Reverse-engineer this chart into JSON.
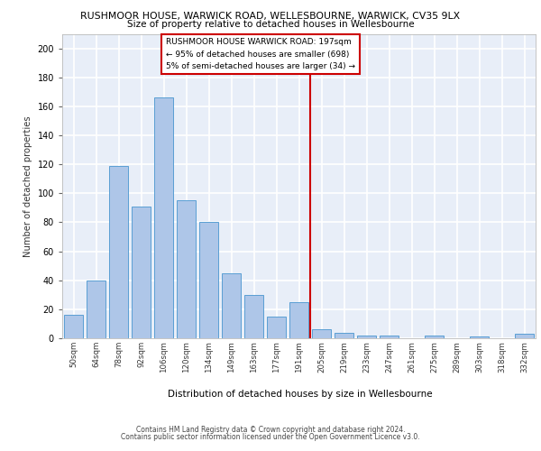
{
  "title": "RUSHMOOR HOUSE, WARWICK ROAD, WELLESBOURNE, WARWICK, CV35 9LX",
  "subtitle": "Size of property relative to detached houses in Wellesbourne",
  "xlabel": "Distribution of detached houses by size in Wellesbourne",
  "ylabel": "Number of detached properties",
  "categories": [
    "50sqm",
    "64sqm",
    "78sqm",
    "92sqm",
    "106sqm",
    "120sqm",
    "134sqm",
    "149sqm",
    "163sqm",
    "177sqm",
    "191sqm",
    "205sqm",
    "219sqm",
    "233sqm",
    "247sqm",
    "261sqm",
    "275sqm",
    "289sqm",
    "303sqm",
    "318sqm",
    "332sqm"
  ],
  "values": [
    16,
    40,
    119,
    91,
    166,
    95,
    80,
    45,
    30,
    15,
    25,
    6,
    4,
    2,
    2,
    0,
    2,
    0,
    1,
    0,
    3
  ],
  "bar_color": "#aec6e8",
  "bar_edge_color": "#5a9fd4",
  "marker_label_line1": "RUSHMOOR HOUSE WARWICK ROAD: 197sqm",
  "marker_label_line2": "← 95% of detached houses are smaller (698)",
  "marker_label_line3": "5% of semi-detached houses are larger (34) →",
  "marker_color": "#cc0000",
  "ylim": [
    0,
    210
  ],
  "yticks": [
    0,
    20,
    40,
    60,
    80,
    100,
    120,
    140,
    160,
    180,
    200
  ],
  "bg_color": "#e8eef8",
  "grid_color": "#ffffff",
  "footer_line1": "Contains HM Land Registry data © Crown copyright and database right 2024.",
  "footer_line2": "Contains public sector information licensed under the Open Government Licence v3.0."
}
